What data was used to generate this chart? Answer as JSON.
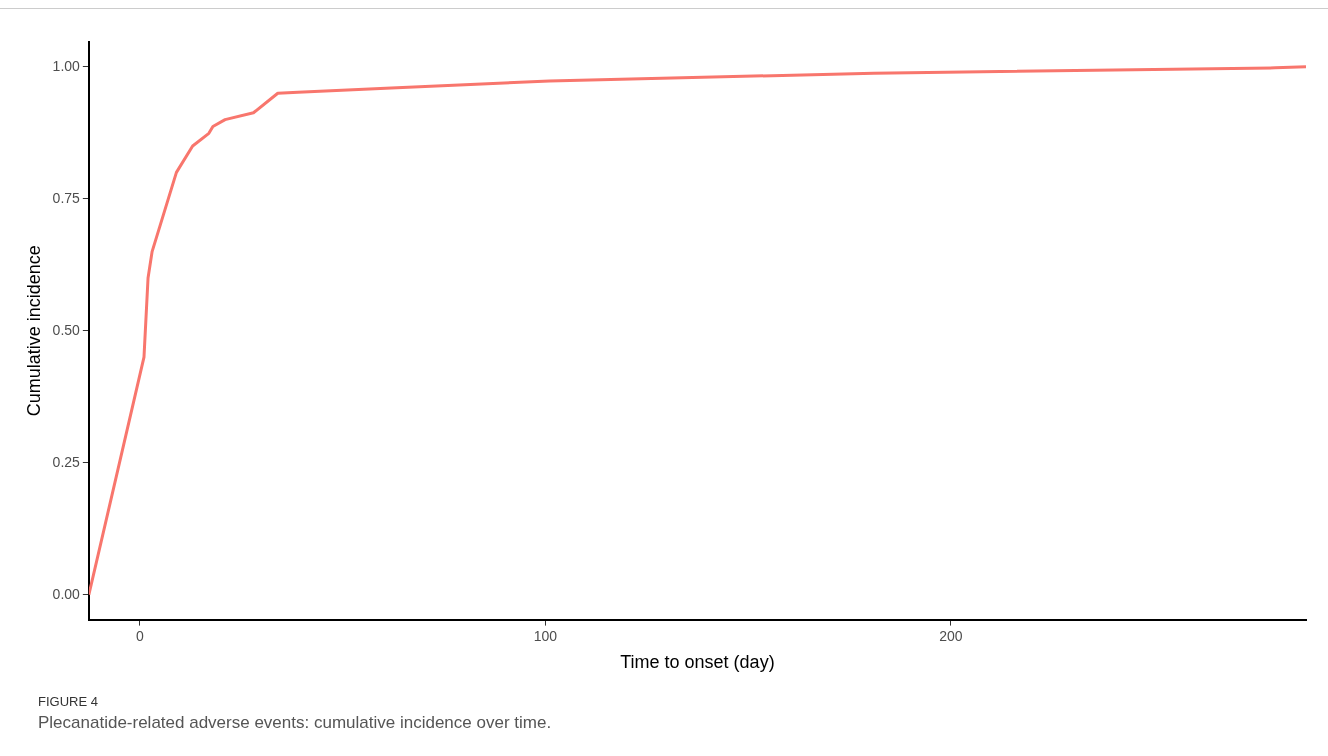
{
  "chart_data": {
    "type": "line",
    "xlabel": "Time to onset (day)",
    "ylabel": "Cumulative incidence",
    "annotations": [
      "FIGURE 4",
      "Plecanatide-related adverse events: cumulative incidence over time."
    ],
    "x": [
      -12.6,
      1,
      2,
      3,
      9,
      13,
      17,
      18,
      21,
      28,
      34,
      39,
      62,
      101,
      181,
      280,
      287.6
    ],
    "series": [
      {
        "color": "#f8766d",
        "values": [
          0,
          0.45,
          0.6,
          0.65,
          0.8,
          0.85,
          0.874,
          0.887,
          0.9,
          0.913,
          0.95,
          0.952,
          0.96,
          0.973,
          0.988,
          0.998,
          1.0
        ]
      }
    ],
    "xlim": [
      -12.6,
      287.6
    ],
    "xticks": [
      0,
      100,
      200
    ],
    "ylim": [
      -0.047,
      1.047
    ],
    "yticks": [
      {
        "value": 0,
        "label": "0.00"
      },
      {
        "value": 0.25,
        "label": "0.25"
      },
      {
        "value": 0.5,
        "label": "0.50"
      },
      {
        "value": 0.75,
        "label": "0.75"
      },
      {
        "value": 1,
        "label": "1.00"
      }
    ],
    "grid": false,
    "legend": false,
    "marker": "none",
    "line_style": "solid"
  }
}
